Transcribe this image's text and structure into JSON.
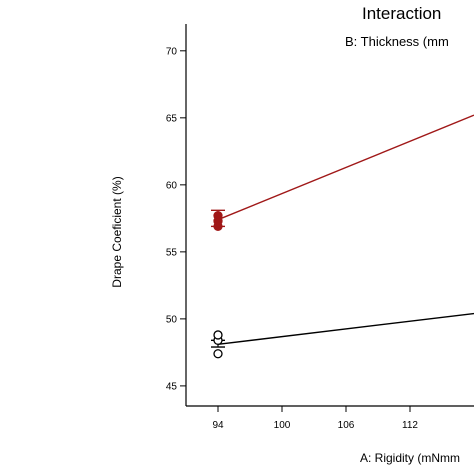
{
  "chart_data": {
    "type": "line",
    "title": "Interaction",
    "legend_title": "B: Thickness (mm",
    "xlabel": "A: Rigidity (mNmm",
    "ylabel": "Drape Coeficient (%)",
    "xlim": [
      91,
      118
    ],
    "ylim": [
      43.5,
      72
    ],
    "x_ticks": [
      "94",
      "100",
      "106",
      "112"
    ],
    "y_ticks": [
      "70",
      "65",
      "60",
      "55",
      "50",
      "45"
    ],
    "grid": false,
    "series": [
      {
        "color": "#a01818",
        "line": [
          {
            "x": 94,
            "y": 57.4
          },
          {
            "x": 118,
            "y": 65.2
          }
        ],
        "points": [
          56.9,
          57.3,
          57.7
        ],
        "error_bar": [
          56.9,
          58.1
        ],
        "filled": true
      },
      {
        "color": "#000000",
        "line": [
          {
            "x": 94,
            "y": 48.1
          },
          {
            "x": 118,
            "y": 50.4
          }
        ],
        "points": [
          47.4,
          48.4,
          48.8
        ],
        "error_bar": [
          47.9,
          48.4
        ],
        "filled": false
      }
    ]
  }
}
